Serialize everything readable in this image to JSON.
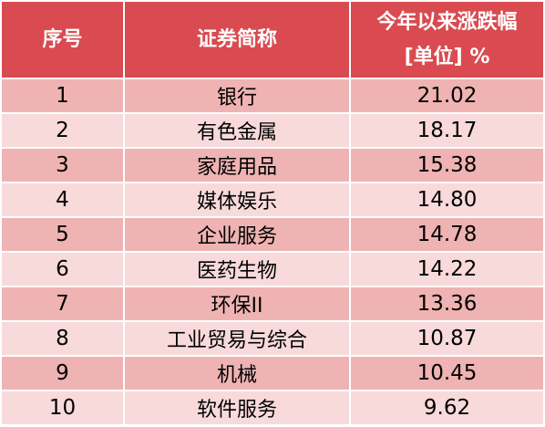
{
  "table": {
    "headers": {
      "index": "序号",
      "name": "证券简称",
      "change_line1": "今年以来涨跌幅",
      "change_line2": "[单位] %"
    },
    "rows": [
      {
        "index": "1",
        "name": "银行",
        "change": "21.02"
      },
      {
        "index": "2",
        "name": "有色金属",
        "change": "18.17"
      },
      {
        "index": "3",
        "name": "家庭用品",
        "change": "15.38"
      },
      {
        "index": "4",
        "name": "媒体娱乐",
        "change": "14.80"
      },
      {
        "index": "5",
        "name": "企业服务",
        "change": "14.78"
      },
      {
        "index": "6",
        "name": "医药生物",
        "change": "14.22"
      },
      {
        "index": "7",
        "name": "环保II",
        "change": "13.36"
      },
      {
        "index": "8",
        "name": "工业贸易与综合",
        "change": "10.87"
      },
      {
        "index": "9",
        "name": "机械",
        "change": "10.45"
      },
      {
        "index": "10",
        "name": "软件服务",
        "change": "9.62"
      }
    ]
  },
  "colors": {
    "header_bg": "#d94b50",
    "row_odd_bg": "#efb3b3",
    "row_even_bg": "#f8dadb"
  }
}
